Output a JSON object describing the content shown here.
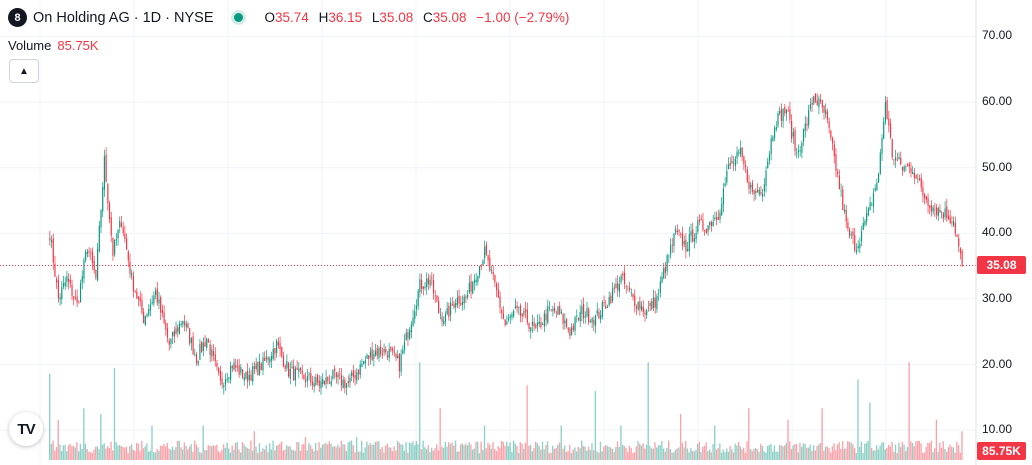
{
  "header": {
    "logo_glyph": "8",
    "symbol_title": "On Holding AG · 1D · NYSE",
    "status_color": "#089981",
    "ohlc": [
      {
        "key": "O",
        "value": "35.74"
      },
      {
        "key": "H",
        "value": "36.15"
      },
      {
        "key": "L",
        "value": "35.08"
      },
      {
        "key": "C",
        "value": "35.08"
      }
    ],
    "change": "−1.00 (−2.79%)"
  },
  "volume": {
    "label": "Volume",
    "value": "85.75K"
  },
  "collapse_icon": "chevron-up-icon",
  "price_axis": {
    "labels": [
      "70.00",
      "60.00",
      "50.00",
      "40.00",
      "30.00",
      "20.00",
      "10.00"
    ]
  },
  "last_price_badge": "35.08",
  "volume_badge": "85.75K",
  "brand_logo": "TV",
  "colors": {
    "up": "#089981",
    "down": "#f23645",
    "grid": "#f0f3fa"
  },
  "chart_data": {
    "type": "candlestick",
    "ylim": [
      0,
      72
    ],
    "grid": true,
    "last_price": 35.08,
    "anchors": [
      [
        0,
        40
      ],
      [
        5,
        30
      ],
      [
        10,
        33
      ],
      [
        16,
        29
      ],
      [
        22,
        38
      ],
      [
        27,
        33
      ],
      [
        32,
        51
      ],
      [
        37,
        37
      ],
      [
        42,
        42
      ],
      [
        48,
        33
      ],
      [
        55,
        27
      ],
      [
        62,
        31
      ],
      [
        70,
        23
      ],
      [
        78,
        27
      ],
      [
        86,
        21
      ],
      [
        92,
        24
      ],
      [
        100,
        17
      ],
      [
        107,
        20
      ],
      [
        115,
        18
      ],
      [
        125,
        20
      ],
      [
        133,
        23
      ],
      [
        140,
        19
      ],
      [
        148,
        18
      ],
      [
        158,
        17
      ],
      [
        166,
        18
      ],
      [
        175,
        17
      ],
      [
        183,
        20
      ],
      [
        190,
        22
      ],
      [
        198,
        22
      ],
      [
        205,
        20
      ],
      [
        210,
        25
      ],
      [
        217,
        32
      ],
      [
        223,
        33
      ],
      [
        228,
        28
      ],
      [
        232,
        27
      ],
      [
        238,
        30
      ],
      [
        244,
        30
      ],
      [
        250,
        34
      ],
      [
        255,
        37
      ],
      [
        262,
        31
      ],
      [
        267,
        26
      ],
      [
        273,
        28
      ],
      [
        279,
        27
      ],
      [
        285,
        25
      ],
      [
        292,
        28
      ],
      [
        298,
        28
      ],
      [
        305,
        25
      ],
      [
        312,
        28
      ],
      [
        320,
        27
      ],
      [
        328,
        30
      ],
      [
        335,
        33
      ],
      [
        342,
        30
      ],
      [
        350,
        28
      ],
      [
        356,
        30
      ],
      [
        360,
        34
      ],
      [
        367,
        40
      ],
      [
        373,
        38
      ],
      [
        380,
        41
      ],
      [
        385,
        41
      ],
      [
        392,
        43
      ],
      [
        398,
        50
      ],
      [
        405,
        52
      ],
      [
        412,
        46
      ],
      [
        418,
        47
      ],
      [
        425,
        57
      ],
      [
        432,
        59
      ],
      [
        438,
        52
      ],
      [
        444,
        57
      ],
      [
        448,
        61
      ],
      [
        455,
        58
      ],
      [
        461,
        50
      ],
      [
        468,
        40
      ],
      [
        473,
        38
      ],
      [
        480,
        43
      ],
      [
        486,
        49
      ],
      [
        490,
        60
      ],
      [
        494,
        52
      ],
      [
        500,
        50
      ],
      [
        506,
        50
      ],
      [
        512,
        46
      ],
      [
        518,
        44
      ],
      [
        525,
        43
      ],
      [
        530,
        42
      ],
      [
        535,
        35
      ]
    ],
    "n_candles": 536,
    "volume_spikes": [
      [
        0,
        15
      ],
      [
        5,
        7
      ],
      [
        20,
        9
      ],
      [
        30,
        8
      ],
      [
        38,
        16
      ],
      [
        60,
        6
      ],
      [
        90,
        6
      ],
      [
        120,
        5
      ],
      [
        150,
        4
      ],
      [
        180,
        4
      ],
      [
        205,
        3
      ],
      [
        217,
        17
      ],
      [
        229,
        9
      ],
      [
        255,
        6
      ],
      [
        280,
        13
      ],
      [
        300,
        6
      ],
      [
        320,
        12
      ],
      [
        335,
        6
      ],
      [
        351,
        17
      ],
      [
        370,
        8
      ],
      [
        390,
        6
      ],
      [
        410,
        9
      ],
      [
        433,
        7
      ],
      [
        453,
        9
      ],
      [
        474,
        14
      ],
      [
        481,
        10
      ],
      [
        504,
        17
      ],
      [
        520,
        7
      ],
      [
        535,
        5
      ]
    ],
    "volume_max": 20
  }
}
